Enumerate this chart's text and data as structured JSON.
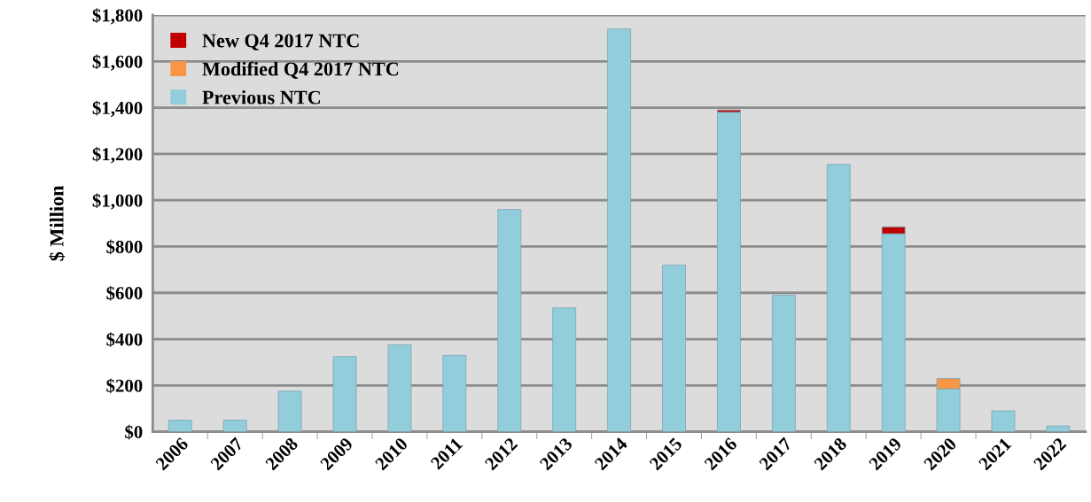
{
  "chart_data": {
    "type": "bar",
    "stacked": true,
    "ylabel": "$ Million",
    "categories": [
      "2006",
      "2007",
      "2008",
      "2009",
      "2010",
      "2011",
      "2012",
      "2013",
      "2014",
      "2015",
      "2016",
      "2017",
      "2018",
      "2019",
      "2020",
      "2021",
      "2022"
    ],
    "series": [
      {
        "name": "Previous NTC",
        "color": "#92cddc",
        "values": [
          50,
          50,
          175,
          325,
          375,
          330,
          960,
          535,
          1740,
          720,
          1380,
          590,
          1155,
          855,
          185,
          90,
          25
        ]
      },
      {
        "name": "Modified Q4 2017 NTC",
        "color": "#f79646",
        "values": [
          null,
          null,
          null,
          null,
          null,
          null,
          null,
          null,
          null,
          null,
          null,
          null,
          null,
          null,
          45,
          null,
          null
        ]
      },
      {
        "name": "New Q4 2017 NTC",
        "color": "#c00000",
        "values": [
          null,
          null,
          null,
          null,
          null,
          null,
          null,
          null,
          null,
          null,
          10,
          null,
          null,
          30,
          null,
          null,
          null
        ]
      }
    ],
    "ylim": [
      0,
      1800
    ],
    "yticks": [
      {
        "value": 0,
        "label": "$0"
      },
      {
        "value": 200,
        "label": "$200"
      },
      {
        "value": 400,
        "label": "$400"
      },
      {
        "value": 600,
        "label": "$600"
      },
      {
        "value": 800,
        "label": "$800"
      },
      {
        "value": 1000,
        "label": "$1,000"
      },
      {
        "value": 1200,
        "label": "$1,200"
      },
      {
        "value": 1400,
        "label": "$1,400"
      },
      {
        "value": 1600,
        "label": "$1,600"
      },
      {
        "value": 1800,
        "label": "$1,800"
      }
    ],
    "grid": "y",
    "legend": "top left"
  }
}
